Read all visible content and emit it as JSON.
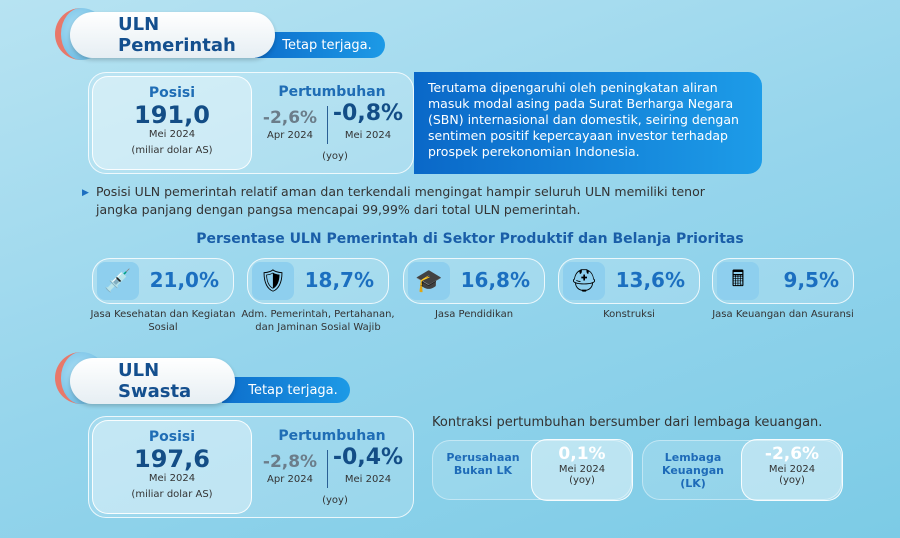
{
  "pemerintah": {
    "title": "ULN Pemerintah",
    "tag": "Tetap terjaga.",
    "posisi_label": "Posisi",
    "posisi_value": "191,0",
    "posisi_date": "Mei 2024",
    "posisi_unit": "(miliar dolar AS)",
    "growth_label": "Pertumbuhan",
    "growth_prev": "-2,6%",
    "growth_prev_date": "Apr 2024",
    "growth_cur": "-0,8%",
    "growth_cur_date": "Mei 2024",
    "growth_note": "(yoy)",
    "explanation": "Terutama dipengaruhi oleh peningkatan aliran masuk modal asing pada Surat Berharga Negara (SBN) internasional dan domestik, seiring dengan sentimen positif kepercayaan investor terhadap prospek perekonomian Indonesia.",
    "bullet": "Posisi ULN pemerintah relatif aman dan terkendali mengingat hampir seluruh ULN memiliki tenor jangka panjang dengan pangsa mencapai 99,99% dari total ULN pemerintah."
  },
  "sectors": {
    "title": "Persentase ULN Pemerintah di Sektor Produktif dan Belanja Prioritas",
    "items": [
      {
        "icon": "syringe-icon",
        "glyph": "💉",
        "value": "21,0%",
        "label": "Jasa Kesehatan dan Kegiatan Sosial"
      },
      {
        "icon": "shield-icon",
        "glyph": "🛡",
        "value": "18,7%",
        "label": "Adm. Pemerintah, Pertahanan, dan Jaminan Sosial Wajib"
      },
      {
        "icon": "graduation-cap-icon",
        "glyph": "🎓",
        "value": "16,8%",
        "label": "Jasa Pendidikan"
      },
      {
        "icon": "hard-hat-icon",
        "glyph": "⛑",
        "value": "13,6%",
        "label": "Konstruksi"
      },
      {
        "icon": "calculator-icon",
        "glyph": "🖩",
        "value": "9,5%",
        "label": "Jasa Keuangan dan Asuransi"
      }
    ]
  },
  "swasta": {
    "title": "ULN Swasta",
    "tag": "Tetap terjaga.",
    "posisi_label": "Posisi",
    "posisi_value": "197,6",
    "posisi_date": "Mei 2024",
    "posisi_unit": "(miliar dolar AS)",
    "growth_label": "Pertumbuhan",
    "growth_prev": "-2,8%",
    "growth_prev_date": "Apr 2024",
    "growth_cur": "-0,4%",
    "growth_cur_date": "Mei 2024",
    "growth_note": "(yoy)",
    "contraction": "Kontraksi pertumbuhan bersumber dari lembaga keuangan.",
    "breakdown": [
      {
        "label": "Perusahaan Bukan LK",
        "value": "0,1%",
        "date": "Mei 2024",
        "note": "(yoy)"
      },
      {
        "label": "Lembaga Keuangan (LK)",
        "value": "-2,6%",
        "date": "Mei 2024",
        "note": "(yoy)"
      }
    ]
  }
}
